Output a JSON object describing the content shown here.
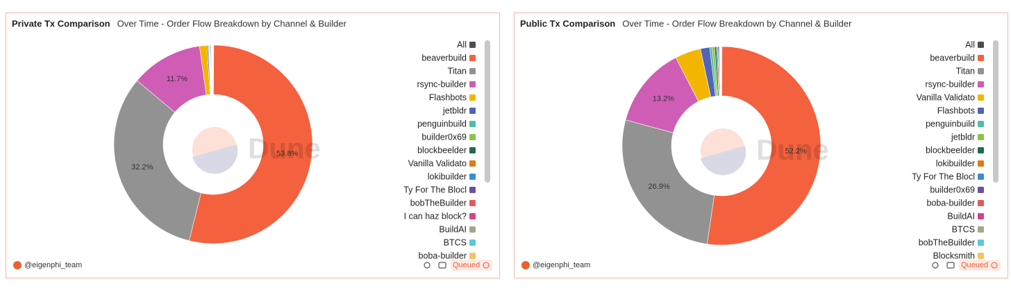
{
  "chart_data": [
    {
      "type": "pie",
      "title": "Private Tx Comparison",
      "subtitle": "Over Time - Order Flow Breakdown by Channel & Builder",
      "watermark": "Dune",
      "author": "@eigenphi_team",
      "status": "Queued",
      "categories": [
        "All",
        "beaverbuild",
        "Titan",
        "rsync-builder",
        "Flashbots",
        "jetbldr",
        "penguinbuild",
        "builder0x69",
        "blockbeelder",
        "Vanilla Validato",
        "lokibuilder",
        "Ty For The Blocl",
        "bobTheBuilder",
        "I can haz block?",
        "BuildAI",
        "BTCS",
        "boba-builder"
      ],
      "values": [
        0.1,
        53.8,
        32.2,
        11.7,
        1.2,
        0.2,
        0.1,
        0.1,
        0.1,
        0.1,
        0.1,
        0.05,
        0.05,
        0.05,
        0.05,
        0.05,
        0.05
      ],
      "value_labels": [
        null,
        "53.8%",
        "32.2%",
        "11.7%",
        null,
        null,
        null,
        null,
        null,
        null,
        null,
        null,
        null,
        null,
        null,
        null,
        null
      ],
      "colors": [
        "#4d4d4d",
        "#f4613e",
        "#929292",
        "#cf5db6",
        "#f2b600",
        "#5363b5",
        "#4dbfa5",
        "#8bc34a",
        "#1f6b57",
        "#e27a16",
        "#3b8fd1",
        "#6c4fa2",
        "#e25b5b",
        "#d6418f",
        "#a7a68b",
        "#5bc8d8",
        "#f2c462"
      ]
    },
    {
      "type": "pie",
      "title": "Public Tx Comparison",
      "subtitle": "Over Time - Order Flow Breakdown by Channel & Builder",
      "watermark": "Dune",
      "author": "@eigenphi_team",
      "status": "Queued",
      "categories": [
        "All",
        "beaverbuild",
        "Titan",
        "rsync-builder",
        "Vanilla Validato",
        "Flashbots",
        "penguinbuild",
        "jetbldr",
        "blockbeelder",
        "lokibuilder",
        "Ty For The Blocl",
        "builder0x69",
        "boba-builder",
        "BuildAI",
        "BTCS",
        "bobTheBuilder",
        "Blocksmith"
      ],
      "values": [
        0.1,
        52.2,
        26.9,
        13.2,
        4.2,
        1.5,
        0.4,
        0.4,
        0.3,
        0.2,
        0.2,
        0.1,
        0.1,
        0.05,
        0.05,
        0.05,
        0.05
      ],
      "value_labels": [
        null,
        "52.2%",
        "26.9%",
        "13.2%",
        null,
        null,
        null,
        null,
        null,
        null,
        null,
        null,
        null,
        null,
        null,
        null,
        null
      ],
      "colors": [
        "#4d4d4d",
        "#f4613e",
        "#929292",
        "#cf5db6",
        "#f2b600",
        "#5363b5",
        "#4dbfa5",
        "#8bc34a",
        "#1f6b57",
        "#e27a16",
        "#3b8fd1",
        "#6c4fa2",
        "#e25b5b",
        "#d6418f",
        "#a7a68b",
        "#5bc8d8",
        "#f2c462"
      ]
    }
  ]
}
